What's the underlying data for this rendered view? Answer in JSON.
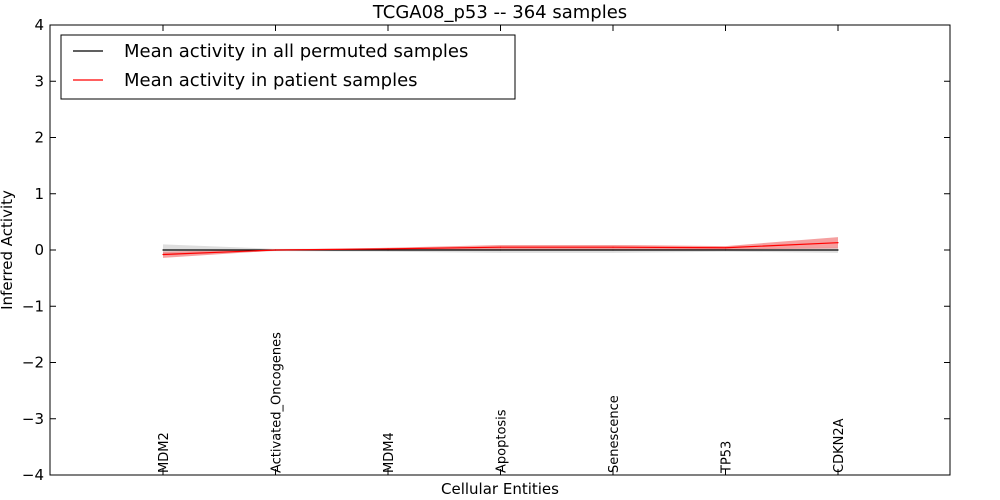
{
  "chart_data": {
    "type": "line",
    "title": "TCGA08_p53 -- 364 samples",
    "xlabel": "Cellular Entities",
    "ylabel": "Inferred Activity",
    "ylim": [
      -4,
      4
    ],
    "yticks": [
      "4",
      "3",
      "2",
      "1",
      "0",
      "−1",
      "−2",
      "−3",
      "−4"
    ],
    "ytick_values": [
      4,
      3,
      2,
      1,
      0,
      -1,
      -2,
      -3,
      -4
    ],
    "categories": [
      "MDM2",
      "Activated_Oncogenes",
      "MDM4",
      "Apoptosis",
      "Senescence",
      "TP53",
      "CDKN2A"
    ],
    "legend_position": "top-left",
    "grid": false,
    "series": [
      {
        "name": "Mean activity in all permuted samples",
        "color": "#000000",
        "band_color": "#c8c8c8",
        "values": [
          0.0,
          0.0,
          0.0,
          0.0,
          0.0,
          0.0,
          0.0
        ],
        "lower": [
          -0.1,
          -0.02,
          -0.03,
          -0.05,
          -0.05,
          -0.03,
          -0.05
        ],
        "upper": [
          0.1,
          0.02,
          0.03,
          0.05,
          0.05,
          0.03,
          0.05
        ]
      },
      {
        "name": "Mean activity in patient samples",
        "color": "#ff0000",
        "band_color": "#f28080",
        "values": [
          -0.08,
          0.0,
          0.02,
          0.05,
          0.05,
          0.04,
          0.13
        ],
        "lower": [
          -0.14,
          -0.01,
          0.0,
          0.0,
          0.0,
          0.01,
          0.03
        ],
        "upper": [
          -0.03,
          0.01,
          0.04,
          0.09,
          0.09,
          0.07,
          0.23
        ]
      }
    ]
  }
}
